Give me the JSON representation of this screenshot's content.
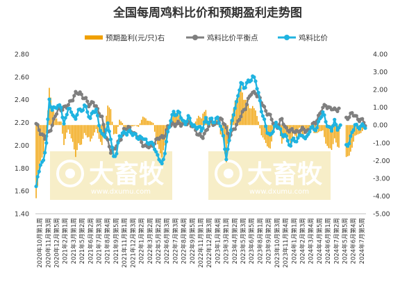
{
  "chart_data": {
    "type": "bar+line",
    "title": "全国每周鸡料比价和预期盈利走势图",
    "legend": [
      {
        "name": "预期盈利(元/只)右",
        "color": "#F0A000",
        "kind": "bar"
      },
      {
        "name": "鸡料比价平衡点",
        "color": "#7F7F7F",
        "kind": "line"
      },
      {
        "name": "鸡料比价",
        "color": "#1FB3E0",
        "kind": "line"
      }
    ],
    "legend_position": "top",
    "grid": false,
    "y_left": {
      "min": 1.4,
      "max": 2.8,
      "ticks": [
        "1.40",
        "1.60",
        "1.80",
        "2.00",
        "2.20",
        "2.40",
        "2.60",
        "2.80"
      ]
    },
    "y_right": {
      "min": -5.0,
      "max": 4.0,
      "ticks": [
        "4.00",
        "3.00",
        "2.00",
        "1.00",
        "0.00",
        "-1.00",
        "-2.00",
        "-3.00",
        "-4.00",
        "-5.00"
      ]
    },
    "x_tick_labels": [
      "2020年10月第1周",
      "2020年11月第3周",
      "2020年12月第5周",
      "2021年2月第1周",
      "2021年3月第1周",
      "2021年5月第2周",
      "2021年6月第2周",
      "2021年7月第3周",
      "2021年8月第4周",
      "2021年9月第5周",
      "2021年11月第1周",
      "2021年12月第3周",
      "2022年1月第2周",
      "2022年3月第2周",
      "2022年5月第2周",
      "2022年6月第3周",
      "2022年7月第3周",
      "2022年8月第4周",
      "2022年9月第5周",
      "2022年11月第1周",
      "2022年12月第3周",
      "2023年1月第4周",
      "2023年3月第1周",
      "2023年4月第2周",
      "2023年5月第3周",
      "2023年6月第5周",
      "2023年8月第1周",
      "2023年9月第2周",
      "2023年10月第3周",
      "2023年11月第4周",
      "2024年1月第1周",
      "2024年2月第3周",
      "2024年3月第4周",
      "2024年4月第5周",
      "2024年6月第1周",
      "2024年7月第2周"
    ],
    "x_tick_labels_extra": [
      "2024年5月第5周",
      "2024年6月第4周",
      "2024年7月第5周"
    ],
    "price_ratio_keypoints": [
      {
        "x": 0,
        "y": 1.63
      },
      {
        "x": 3,
        "y": 1.85
      },
      {
        "x": 5,
        "y": 1.86
      },
      {
        "x": 7,
        "y": 2.02
      },
      {
        "x": 9,
        "y": 2.4
      },
      {
        "x": 11,
        "y": 2.32
      },
      {
        "x": 14,
        "y": 2.33
      },
      {
        "x": 17,
        "y": 2.35
      },
      {
        "x": 19,
        "y": 2.18
      },
      {
        "x": 22,
        "y": 2.32
      },
      {
        "x": 25,
        "y": 2.29
      },
      {
        "x": 27,
        "y": 2.21
      },
      {
        "x": 29,
        "y": 2.32
      },
      {
        "x": 31,
        "y": 2.3
      },
      {
        "x": 33,
        "y": 2.36
      },
      {
        "x": 35,
        "y": 2.28
      },
      {
        "x": 37,
        "y": 2.24
      },
      {
        "x": 39,
        "y": 2.31
      },
      {
        "x": 41,
        "y": 2.3
      },
      {
        "x": 43,
        "y": 2.18
      },
      {
        "x": 45,
        "y": 2.1
      },
      {
        "x": 47,
        "y": 2.09
      },
      {
        "x": 49,
        "y": 2.17
      },
      {
        "x": 51,
        "y": 2.07
      },
      {
        "x": 53,
        "y": 1.9
      },
      {
        "x": 55,
        "y": 1.93
      },
      {
        "x": 57,
        "y": 2.07
      },
      {
        "x": 59,
        "y": 2.12
      },
      {
        "x": 62,
        "y": 2.1
      },
      {
        "x": 65,
        "y": 2.12
      },
      {
        "x": 68,
        "y": 2.09
      },
      {
        "x": 70,
        "y": 2.05
      },
      {
        "x": 73,
        "y": 2.08
      },
      {
        "x": 76,
        "y": 2.02
      },
      {
        "x": 78,
        "y": 2.01
      },
      {
        "x": 80,
        "y": 2.03
      },
      {
        "x": 82,
        "y": 1.93
      },
      {
        "x": 84,
        "y": 1.88
      },
      {
        "x": 86,
        "y": 1.83
      },
      {
        "x": 88,
        "y": 1.95
      },
      {
        "x": 90,
        "y": 2.1
      },
      {
        "x": 92,
        "y": 2.22
      },
      {
        "x": 94,
        "y": 2.3
      },
      {
        "x": 96,
        "y": 2.27
      },
      {
        "x": 98,
        "y": 2.28
      },
      {
        "x": 100,
        "y": 2.22
      },
      {
        "x": 102,
        "y": 2.2
      },
      {
        "x": 104,
        "y": 2.24
      },
      {
        "x": 107,
        "y": 2.18
      },
      {
        "x": 110,
        "y": 2.16
      },
      {
        "x": 113,
        "y": 2.13
      },
      {
        "x": 116,
        "y": 2.24
      },
      {
        "x": 118,
        "y": 2.19
      },
      {
        "x": 120,
        "y": 2.23
      },
      {
        "x": 122,
        "y": 2.21
      },
      {
        "x": 124,
        "y": 2.25
      },
      {
        "x": 126,
        "y": 2.15
      },
      {
        "x": 128,
        "y": 2.1
      },
      {
        "x": 130,
        "y": 1.87
      },
      {
        "x": 132,
        "y": 2.05
      },
      {
        "x": 134,
        "y": 2.2
      },
      {
        "x": 136,
        "y": 2.35
      },
      {
        "x": 138,
        "y": 2.42
      },
      {
        "x": 140,
        "y": 2.55
      },
      {
        "x": 142,
        "y": 2.5
      },
      {
        "x": 144,
        "y": 2.56
      },
      {
        "x": 146,
        "y": 2.55
      },
      {
        "x": 148,
        "y": 2.6
      },
      {
        "x": 150,
        "y": 2.58
      },
      {
        "x": 152,
        "y": 2.45
      },
      {
        "x": 154,
        "y": 2.3
      },
      {
        "x": 156,
        "y": 2.22
      },
      {
        "x": 158,
        "y": 2.13
      },
      {
        "x": 160,
        "y": 2.07
      },
      {
        "x": 162,
        "y": 2.13
      },
      {
        "x": 164,
        "y": 2.2
      },
      {
        "x": 166,
        "y": 2.16
      },
      {
        "x": 168,
        "y": 2.08
      },
      {
        "x": 170,
        "y": 2.1
      },
      {
        "x": 172,
        "y": 2.05
      },
      {
        "x": 174,
        "y": 1.98
      },
      {
        "x": 176,
        "y": 2.07
      },
      {
        "x": 178,
        "y": 2.03
      },
      {
        "x": 180,
        "y": 2.1
      },
      {
        "x": 182,
        "y": 2.06
      },
      {
        "x": 184,
        "y": 2.08
      },
      {
        "x": 186,
        "y": 2.09
      },
      {
        "x": 188,
        "y": 2.16
      },
      {
        "x": 190,
        "y": 2.13
      },
      {
        "x": 192,
        "y": 2.17
      },
      {
        "x": 194,
        "y": 2.23
      },
      {
        "x": 196,
        "y": 2.28
      },
      {
        "x": 198,
        "y": 2.22
      },
      {
        "x": 200,
        "y": 2.16
      },
      {
        "x": 202,
        "y": 2.13
      },
      {
        "x": 204,
        "y": 2.21
      },
      {
        "x": 206,
        "y": 2.16
      },
      {
        "x": 208,
        "y": 2.16
      }
    ],
    "price_ratio_segment2": [
      {
        "x": 212,
        "y": 2.0
      },
      {
        "x": 214,
        "y": 2.03
      },
      {
        "x": 216,
        "y": 2.1
      },
      {
        "x": 218,
        "y": 2.18
      },
      {
        "x": 220,
        "y": 2.17
      },
      {
        "x": 222,
        "y": 2.16
      },
      {
        "x": 224,
        "y": 2.17
      },
      {
        "x": 225,
        "y": 2.16
      }
    ],
    "balance_keypoints": [
      {
        "x": 0,
        "y": 2.18
      },
      {
        "x": 3,
        "y": 2.12
      },
      {
        "x": 6,
        "y": 2.06
      },
      {
        "x": 9,
        "y": 2.12
      },
      {
        "x": 12,
        "y": 2.22
      },
      {
        "x": 15,
        "y": 2.31
      },
      {
        "x": 18,
        "y": 2.33
      },
      {
        "x": 21,
        "y": 2.33
      },
      {
        "x": 24,
        "y": 2.4
      },
      {
        "x": 27,
        "y": 2.45
      },
      {
        "x": 30,
        "y": 2.46
      },
      {
        "x": 33,
        "y": 2.42
      },
      {
        "x": 36,
        "y": 2.35
      },
      {
        "x": 39,
        "y": 2.39
      },
      {
        "x": 42,
        "y": 2.3
      },
      {
        "x": 45,
        "y": 2.25
      },
      {
        "x": 48,
        "y": 2.06
      },
      {
        "x": 51,
        "y": 1.95
      },
      {
        "x": 54,
        "y": 1.98
      },
      {
        "x": 57,
        "y": 2.03
      },
      {
        "x": 60,
        "y": 2.14
      },
      {
        "x": 63,
        "y": 2.15
      },
      {
        "x": 66,
        "y": 2.12
      },
      {
        "x": 69,
        "y": 2.08
      },
      {
        "x": 72,
        "y": 2.03
      },
      {
        "x": 75,
        "y": 1.99
      },
      {
        "x": 78,
        "y": 1.98
      },
      {
        "x": 81,
        "y": 2.03
      },
      {
        "x": 84,
        "y": 2.06
      },
      {
        "x": 87,
        "y": 2.08
      },
      {
        "x": 90,
        "y": 2.15
      },
      {
        "x": 93,
        "y": 2.19
      },
      {
        "x": 96,
        "y": 2.19
      },
      {
        "x": 99,
        "y": 2.18
      },
      {
        "x": 102,
        "y": 2.2
      },
      {
        "x": 105,
        "y": 2.18
      },
      {
        "x": 108,
        "y": 2.17
      },
      {
        "x": 111,
        "y": 2.08
      },
      {
        "x": 114,
        "y": 2.08
      },
      {
        "x": 117,
        "y": 2.15
      },
      {
        "x": 120,
        "y": 2.2
      },
      {
        "x": 123,
        "y": 2.19
      },
      {
        "x": 126,
        "y": 2.22
      },
      {
        "x": 129,
        "y": 2.2
      },
      {
        "x": 132,
        "y": 2.05
      },
      {
        "x": 135,
        "y": 2.15
      },
      {
        "x": 138,
        "y": 2.2
      },
      {
        "x": 141,
        "y": 2.28
      },
      {
        "x": 144,
        "y": 2.37
      },
      {
        "x": 147,
        "y": 2.45
      },
      {
        "x": 150,
        "y": 2.47
      },
      {
        "x": 153,
        "y": 2.4
      },
      {
        "x": 156,
        "y": 2.33
      },
      {
        "x": 159,
        "y": 2.27
      },
      {
        "x": 162,
        "y": 2.2
      },
      {
        "x": 165,
        "y": 2.17
      },
      {
        "x": 168,
        "y": 2.22
      },
      {
        "x": 171,
        "y": 2.15
      },
      {
        "x": 174,
        "y": 2.12
      },
      {
        "x": 177,
        "y": 2.13
      },
      {
        "x": 180,
        "y": 2.12
      },
      {
        "x": 183,
        "y": 2.14
      },
      {
        "x": 186,
        "y": 2.13
      },
      {
        "x": 189,
        "y": 2.17
      },
      {
        "x": 192,
        "y": 2.23
      },
      {
        "x": 195,
        "y": 2.3
      },
      {
        "x": 198,
        "y": 2.36
      },
      {
        "x": 201,
        "y": 2.32
      },
      {
        "x": 204,
        "y": 2.31
      },
      {
        "x": 207,
        "y": 2.33
      }
    ],
    "balance_segment2": [
      {
        "x": 212,
        "y": 2.24
      },
      {
        "x": 214,
        "y": 2.26
      },
      {
        "x": 216,
        "y": 2.27
      },
      {
        "x": 218,
        "y": 2.26
      },
      {
        "x": 220,
        "y": 2.24
      },
      {
        "x": 222,
        "y": 2.22
      },
      {
        "x": 224,
        "y": 2.2
      },
      {
        "x": 225,
        "y": 2.18
      }
    ],
    "gap_range": [
      209,
      211
    ],
    "watermark_text": "大畜牧",
    "watermark_sub": "www.dxumu.com"
  }
}
